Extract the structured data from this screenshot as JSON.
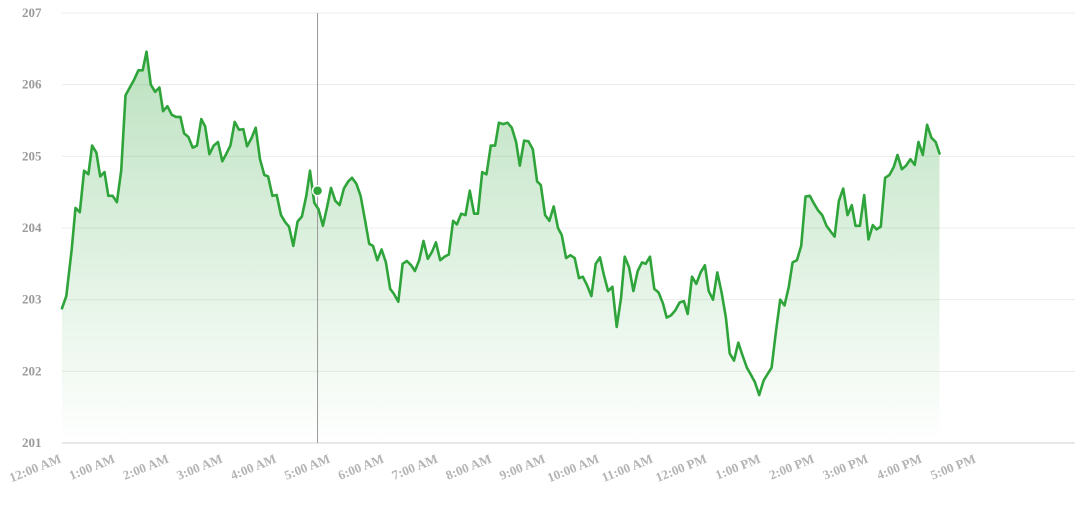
{
  "chart_data": {
    "type": "area",
    "title": "",
    "xlabel": "",
    "ylabel": "",
    "ylim": [
      201,
      207
    ],
    "y_ticks": [
      "201",
      "202",
      "203",
      "204",
      "205",
      "206",
      "207"
    ],
    "x_tick_labels": [
      "12:00 AM",
      "1:00 AM",
      "2:00 AM",
      "3:00 AM",
      "4:00 AM",
      "5:00 AM",
      "6:00 AM",
      "7:00 AM",
      "8:00 AM",
      "9:00 AM",
      "10:00 AM",
      "11:00 AM",
      "12:00 PM",
      "1:00 PM",
      "2:00 PM",
      "3:00 PM",
      "4:00 PM",
      "5:00 PM"
    ],
    "x_unit": "hours since 12:00 AM",
    "xlim": [
      0,
      19.67
    ],
    "grid": true,
    "legend": "none",
    "line_color": "#2ea43a",
    "fill_color": "#2ea43a",
    "highlight": {
      "x": 4.75,
      "y": 204.52
    },
    "series": [
      {
        "values": [
          [
            0.0,
            202.88
          ],
          [
            0.08,
            203.05
          ],
          [
            0.18,
            203.7
          ],
          [
            0.25,
            204.28
          ],
          [
            0.33,
            204.22
          ],
          [
            0.41,
            204.8
          ],
          [
            0.49,
            204.75
          ],
          [
            0.56,
            205.15
          ],
          [
            0.64,
            205.05
          ],
          [
            0.71,
            204.72
          ],
          [
            0.79,
            204.78
          ],
          [
            0.86,
            204.45
          ],
          [
            0.94,
            204.45
          ],
          [
            1.02,
            204.36
          ],
          [
            1.1,
            204.8
          ],
          [
            1.18,
            205.85
          ],
          [
            1.26,
            205.96
          ],
          [
            1.34,
            206.07
          ],
          [
            1.42,
            206.2
          ],
          [
            1.5,
            206.2
          ],
          [
            1.57,
            206.46
          ],
          [
            1.65,
            206.0
          ],
          [
            1.73,
            205.9
          ],
          [
            1.81,
            205.96
          ],
          [
            1.88,
            205.63
          ],
          [
            1.96,
            205.7
          ],
          [
            2.04,
            205.58
          ],
          [
            2.12,
            205.55
          ],
          [
            2.2,
            205.55
          ],
          [
            2.27,
            205.32
          ],
          [
            2.35,
            205.27
          ],
          [
            2.43,
            205.12
          ],
          [
            2.51,
            205.15
          ],
          [
            2.59,
            205.52
          ],
          [
            2.66,
            205.42
          ],
          [
            2.74,
            205.03
          ],
          [
            2.82,
            205.15
          ],
          [
            2.9,
            205.2
          ],
          [
            2.98,
            204.93
          ],
          [
            3.05,
            205.03
          ],
          [
            3.13,
            205.15
          ],
          [
            3.21,
            205.48
          ],
          [
            3.29,
            205.37
          ],
          [
            3.37,
            205.38
          ],
          [
            3.44,
            205.14
          ],
          [
            3.52,
            205.25
          ],
          [
            3.6,
            205.4
          ],
          [
            3.68,
            204.96
          ],
          [
            3.76,
            204.74
          ],
          [
            3.83,
            204.72
          ],
          [
            3.91,
            204.45
          ],
          [
            3.99,
            204.46
          ],
          [
            4.07,
            204.18
          ],
          [
            4.15,
            204.08
          ],
          [
            4.22,
            204.02
          ],
          [
            4.3,
            203.75
          ],
          [
            4.38,
            204.09
          ],
          [
            4.46,
            204.16
          ],
          [
            4.54,
            204.45
          ],
          [
            4.61,
            204.8
          ],
          [
            4.69,
            204.35
          ],
          [
            4.77,
            204.26
          ],
          [
            4.85,
            204.03
          ],
          [
            4.93,
            204.3
          ],
          [
            5.0,
            204.56
          ],
          [
            5.08,
            204.38
          ],
          [
            5.16,
            204.32
          ],
          [
            5.24,
            204.55
          ],
          [
            5.32,
            204.65
          ],
          [
            5.39,
            204.7
          ],
          [
            5.47,
            204.62
          ],
          [
            5.55,
            204.45
          ],
          [
            5.63,
            204.12
          ],
          [
            5.71,
            203.78
          ],
          [
            5.78,
            203.75
          ],
          [
            5.86,
            203.55
          ],
          [
            5.94,
            203.7
          ],
          [
            6.02,
            203.52
          ],
          [
            6.1,
            203.15
          ],
          [
            6.17,
            203.08
          ],
          [
            6.25,
            202.97
          ],
          [
            6.33,
            203.5
          ],
          [
            6.41,
            203.54
          ],
          [
            6.49,
            203.48
          ],
          [
            6.56,
            203.4
          ],
          [
            6.64,
            203.55
          ],
          [
            6.72,
            203.82
          ],
          [
            6.8,
            203.57
          ],
          [
            6.88,
            203.67
          ],
          [
            6.95,
            203.8
          ],
          [
            7.03,
            203.55
          ],
          [
            7.11,
            203.6
          ],
          [
            7.19,
            203.63
          ],
          [
            7.27,
            204.1
          ],
          [
            7.34,
            204.05
          ],
          [
            7.42,
            204.2
          ],
          [
            7.5,
            204.18
          ],
          [
            7.58,
            204.52
          ],
          [
            7.66,
            204.2
          ],
          [
            7.73,
            204.2
          ],
          [
            7.81,
            204.78
          ],
          [
            7.89,
            204.75
          ],
          [
            7.97,
            205.15
          ],
          [
            8.05,
            205.15
          ],
          [
            8.12,
            205.47
          ],
          [
            8.2,
            205.45
          ],
          [
            8.28,
            205.47
          ],
          [
            8.36,
            205.4
          ],
          [
            8.44,
            205.2
          ],
          [
            8.51,
            204.87
          ],
          [
            8.59,
            205.22
          ],
          [
            8.67,
            205.21
          ],
          [
            8.75,
            205.1
          ],
          [
            8.83,
            204.65
          ],
          [
            8.9,
            204.6
          ],
          [
            8.98,
            204.18
          ],
          [
            9.06,
            204.1
          ],
          [
            9.14,
            204.3
          ],
          [
            9.22,
            204.0
          ],
          [
            9.29,
            203.9
          ],
          [
            9.37,
            203.58
          ],
          [
            9.45,
            203.62
          ],
          [
            9.53,
            203.58
          ],
          [
            9.61,
            203.3
          ],
          [
            9.68,
            203.32
          ],
          [
            9.76,
            203.2
          ],
          [
            9.84,
            203.05
          ],
          [
            9.92,
            203.5
          ],
          [
            10.0,
            203.59
          ],
          [
            10.07,
            203.35
          ],
          [
            10.15,
            203.12
          ],
          [
            10.23,
            203.18
          ],
          [
            10.31,
            202.62
          ],
          [
            10.39,
            203.02
          ],
          [
            10.46,
            203.6
          ],
          [
            10.54,
            203.45
          ],
          [
            10.62,
            203.12
          ],
          [
            10.7,
            203.4
          ],
          [
            10.78,
            203.52
          ],
          [
            10.85,
            203.5
          ],
          [
            10.93,
            203.6
          ],
          [
            11.01,
            203.15
          ],
          [
            11.09,
            203.1
          ],
          [
            11.17,
            202.95
          ],
          [
            11.24,
            202.75
          ],
          [
            11.32,
            202.78
          ],
          [
            11.4,
            202.85
          ],
          [
            11.48,
            202.96
          ],
          [
            11.56,
            202.98
          ],
          [
            11.63,
            202.8
          ],
          [
            11.71,
            203.32
          ],
          [
            11.79,
            203.22
          ],
          [
            11.87,
            203.38
          ],
          [
            11.95,
            203.48
          ],
          [
            12.02,
            203.12
          ],
          [
            12.1,
            203.0
          ],
          [
            12.18,
            203.38
          ],
          [
            12.26,
            203.1
          ],
          [
            12.34,
            202.75
          ],
          [
            12.41,
            202.25
          ],
          [
            12.49,
            202.15
          ],
          [
            12.57,
            202.4
          ],
          [
            12.65,
            202.22
          ],
          [
            12.73,
            202.05
          ],
          [
            12.8,
            201.96
          ],
          [
            12.88,
            201.85
          ],
          [
            12.96,
            201.67
          ],
          [
            13.04,
            201.87
          ],
          [
            13.12,
            201.97
          ],
          [
            13.19,
            202.05
          ],
          [
            13.27,
            202.55
          ],
          [
            13.35,
            203.0
          ],
          [
            13.43,
            202.92
          ],
          [
            13.51,
            203.18
          ],
          [
            13.58,
            203.52
          ],
          [
            13.66,
            203.55
          ],
          [
            13.74,
            203.75
          ],
          [
            13.82,
            204.44
          ],
          [
            13.9,
            204.45
          ],
          [
            13.97,
            204.35
          ],
          [
            14.05,
            204.25
          ],
          [
            14.13,
            204.18
          ],
          [
            14.21,
            204.03
          ],
          [
            14.29,
            203.95
          ],
          [
            14.36,
            203.88
          ],
          [
            14.44,
            204.38
          ],
          [
            14.52,
            204.55
          ],
          [
            14.6,
            204.18
          ],
          [
            14.68,
            204.32
          ],
          [
            14.75,
            204.03
          ],
          [
            14.83,
            204.03
          ],
          [
            14.91,
            204.46
          ],
          [
            14.99,
            203.84
          ],
          [
            15.07,
            204.04
          ],
          [
            15.14,
            203.98
          ],
          [
            15.22,
            204.02
          ],
          [
            15.3,
            204.7
          ],
          [
            15.38,
            204.74
          ],
          [
            15.46,
            204.85
          ],
          [
            15.53,
            205.02
          ],
          [
            15.61,
            204.82
          ],
          [
            15.69,
            204.87
          ],
          [
            15.77,
            204.96
          ],
          [
            15.85,
            204.88
          ],
          [
            15.92,
            205.2
          ],
          [
            16.0,
            205.02
          ],
          [
            16.08,
            205.44
          ],
          [
            16.16,
            205.26
          ],
          [
            16.24,
            205.2
          ],
          [
            16.31,
            205.04
          ]
        ]
      }
    ]
  }
}
